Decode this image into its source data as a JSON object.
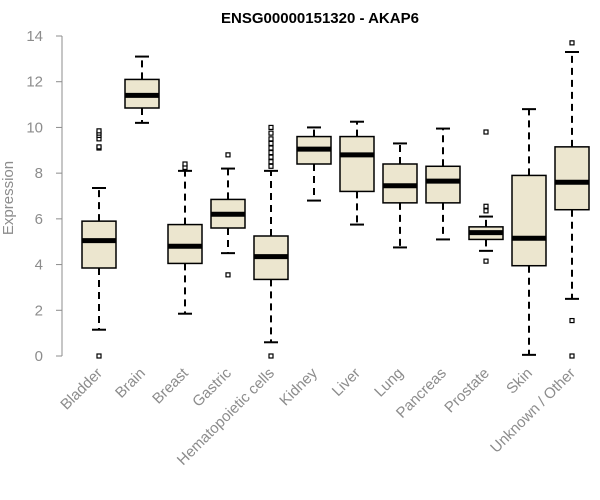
{
  "chart_data": {
    "type": "box",
    "title": "ENSG00000151320 - AKAP6",
    "ylabel": "Expression",
    "xlabel": "",
    "ylim": [
      0,
      14
    ],
    "yticks": [
      0,
      2,
      4,
      6,
      8,
      10,
      12,
      14
    ],
    "grid": false,
    "legend": "none",
    "colors": {
      "box_fill": "#ece6cf",
      "box_stroke": "#000000",
      "axis": "#8c8c8c"
    },
    "categories": [
      "Bladder",
      "Brain",
      "Breast",
      "Gastric",
      "Hematopoietic cells",
      "Kidney",
      "Liver",
      "Lung",
      "Pancreas",
      "Prostate",
      "Skin",
      "Unknown / Other"
    ],
    "boxes": [
      {
        "category": "Bladder",
        "whisker_low": 1.15,
        "q1": 3.85,
        "median": 5.05,
        "q3": 5.9,
        "whisker_high": 7.35,
        "outliers": [
          0.0,
          9.1,
          9.15,
          9.5,
          9.65,
          9.75,
          9.85
        ]
      },
      {
        "category": "Brain",
        "whisker_low": 10.2,
        "q1": 10.85,
        "median": 11.4,
        "q3": 12.1,
        "whisker_high": 13.1,
        "outliers": []
      },
      {
        "category": "Breast",
        "whisker_low": 1.85,
        "q1": 4.05,
        "median": 4.8,
        "q3": 5.75,
        "whisker_high": 8.1,
        "outliers": [
          8.25,
          8.4
        ]
      },
      {
        "category": "Gastric",
        "whisker_low": 4.5,
        "q1": 5.6,
        "median": 6.2,
        "q3": 6.85,
        "whisker_high": 8.2,
        "outliers": [
          3.55,
          8.8
        ]
      },
      {
        "category": "Hematopoietic cells",
        "whisker_low": 0.6,
        "q1": 3.35,
        "median": 4.35,
        "q3": 5.25,
        "whisker_high": 8.1,
        "outliers": [
          0.0,
          8.3,
          8.5,
          8.7,
          8.9,
          9.1,
          9.3,
          9.5,
          9.75,
          10.0
        ]
      },
      {
        "category": "Kidney",
        "whisker_low": 6.8,
        "q1": 8.4,
        "median": 9.05,
        "q3": 9.6,
        "whisker_high": 10.0,
        "outliers": []
      },
      {
        "category": "Liver",
        "whisker_low": 5.75,
        "q1": 7.2,
        "median": 8.8,
        "q3": 9.6,
        "whisker_high": 10.25,
        "outliers": []
      },
      {
        "category": "Lung",
        "whisker_low": 4.75,
        "q1": 6.7,
        "median": 7.45,
        "q3": 8.4,
        "whisker_high": 9.3,
        "outliers": []
      },
      {
        "category": "Pancreas",
        "whisker_low": 5.1,
        "q1": 6.7,
        "median": 7.65,
        "q3": 8.3,
        "whisker_high": 9.95,
        "outliers": []
      },
      {
        "category": "Prostate",
        "whisker_low": 4.6,
        "q1": 5.1,
        "median": 5.4,
        "q3": 5.65,
        "whisker_high": 6.1,
        "outliers": [
          4.15,
          6.35,
          6.55,
          9.8
        ]
      },
      {
        "category": "Skin",
        "whisker_low": 0.05,
        "q1": 3.95,
        "median": 5.15,
        "q3": 7.9,
        "whisker_high": 10.8,
        "outliers": []
      },
      {
        "category": "Unknown / Other",
        "whisker_low": 2.5,
        "q1": 6.4,
        "median": 7.6,
        "q3": 9.15,
        "whisker_high": 13.3,
        "outliers": [
          0.0,
          1.55,
          13.7
        ]
      }
    ]
  }
}
